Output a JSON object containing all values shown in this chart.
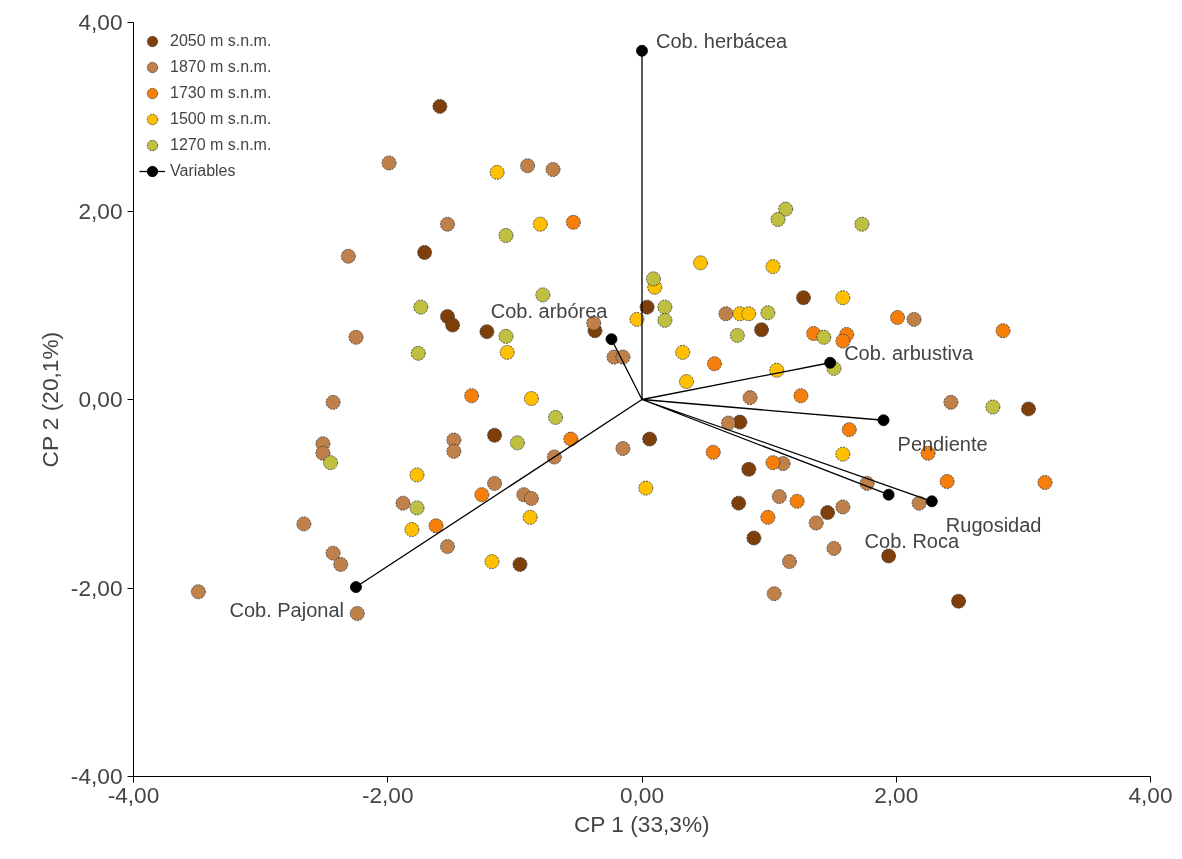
{
  "chart_data": {
    "type": "scatter",
    "xlabel": "CP 1 (33,3%)",
    "ylabel": "CP 2 (20,1%)",
    "xlim": [
      -4,
      4
    ],
    "ylim": [
      -4,
      4
    ],
    "xticks": [
      {
        "value": -4,
        "label": "-4,00"
      },
      {
        "value": -2,
        "label": "-2,00"
      },
      {
        "value": 0,
        "label": "0,00"
      },
      {
        "value": 2,
        "label": "2,00"
      },
      {
        "value": 4,
        "label": "4,00"
      }
    ],
    "yticks": [
      {
        "value": -4,
        "label": "-4,00"
      },
      {
        "value": -2,
        "label": "-2,00"
      },
      {
        "value": 0,
        "label": "0,00"
      },
      {
        "value": 2,
        "label": "2,00"
      },
      {
        "value": 4,
        "label": "4,00"
      }
    ],
    "grid": false,
    "legend": "top left",
    "marker": "circle",
    "series": [
      {
        "name": "2050 m s.n.m.",
        "color": "#7f3f0a",
        "x": [
          -1.59,
          -1.71,
          -1.53,
          -1.49,
          -1.22,
          -0.37,
          0.04,
          1.27,
          0.94,
          3.04,
          -1.16,
          0.06,
          -0.96,
          0.77,
          0.84,
          0.76,
          1.46,
          0.88,
          1.94,
          2.49
        ],
        "values": [
          3.11,
          1.56,
          0.88,
          0.79,
          0.72,
          0.73,
          0.98,
          1.08,
          0.74,
          -0.1,
          -0.38,
          -0.42,
          -1.75,
          -0.24,
          -0.74,
          -1.1,
          -1.2,
          -1.47,
          -1.66,
          -2.14
        ]
      },
      {
        "name": "1870 m s.n.m.",
        "color": "#c0804a",
        "x": [
          -1.99,
          -0.9,
          -0.7,
          -1.53,
          -2.31,
          -2.25,
          -0.38,
          -0.22,
          -0.15,
          -2.43,
          0.66,
          2.14,
          0.85,
          2.43,
          -0.15,
          -2.51,
          -2.51,
          -1.48,
          -1.48,
          -0.69,
          -1.16,
          -0.93,
          -0.87,
          -1.88,
          -2.66,
          -1.53,
          -2.43,
          -2.37,
          -3.49,
          -2.24,
          0.68,
          1.11,
          1.77,
          2.18,
          1.08,
          1.58,
          1.37,
          1.51,
          1.16,
          1.04
        ],
        "values": [
          2.51,
          2.48,
          2.44,
          1.86,
          1.52,
          0.66,
          0.81,
          0.45,
          0.45,
          -0.03,
          0.91,
          0.85,
          0.02,
          -0.03,
          -0.52,
          -0.47,
          -0.57,
          -0.43,
          -0.55,
          -0.61,
          -0.89,
          -1.01,
          -1.05,
          -1.1,
          -1.32,
          -1.56,
          -1.63,
          -1.75,
          -2.04,
          -2.27,
          -0.25,
          -0.68,
          -0.89,
          -1.1,
          -1.03,
          -1.14,
          -1.31,
          -1.58,
          -1.72,
          -2.06
        ]
      },
      {
        "name": "1730 m s.n.m.",
        "color": "#f57f0a",
        "x": [
          -0.54,
          -1.34,
          1.35,
          1.61,
          1.58,
          2.01,
          2.84,
          0.57,
          1.25,
          -0.56,
          -1.26,
          -1.62,
          1.63,
          0.56,
          2.25,
          1.03,
          2.4,
          3.17,
          1.22,
          0.99
        ],
        "values": [
          1.88,
          0.04,
          0.7,
          0.69,
          0.62,
          0.87,
          0.73,
          0.38,
          0.04,
          -0.42,
          -1.01,
          -1.34,
          -0.32,
          -0.56,
          -0.57,
          -0.67,
          -0.87,
          -0.88,
          -1.08,
          -1.25
        ]
      },
      {
        "name": "1500 m s.n.m.",
        "color": "#ffc000",
        "x": [
          -1.14,
          -0.8,
          -1.06,
          -0.04,
          0.1,
          -0.87,
          0.46,
          1.03,
          1.58,
          0.77,
          0.84,
          0.32,
          0.35,
          1.06,
          -1.77,
          -0.88,
          -1.81,
          -1.18,
          0.03,
          1.58
        ],
        "values": [
          2.41,
          1.86,
          0.5,
          0.85,
          1.19,
          0.01,
          1.45,
          1.41,
          1.08,
          0.91,
          0.91,
          0.5,
          0.19,
          0.31,
          -0.8,
          -1.25,
          -1.38,
          -1.72,
          -0.94,
          -0.58
        ]
      },
      {
        "name": "1270 m s.n.m.",
        "color": "#bfbf40",
        "x": [
          -1.07,
          -0.78,
          -1.74,
          -1.07,
          -1.76,
          0.09,
          1.13,
          1.07,
          1.73,
          0.18,
          0.18,
          0.99,
          0.75,
          1.43,
          1.51,
          2.76,
          -0.68,
          -0.98,
          -2.45,
          -1.77
        ],
        "values": [
          1.74,
          1.11,
          0.98,
          0.67,
          0.49,
          1.28,
          2.02,
          1.91,
          1.86,
          0.98,
          0.84,
          0.92,
          0.68,
          0.66,
          0.33,
          -0.08,
          -0.19,
          -0.46,
          -0.67,
          -1.15
        ]
      },
      {
        "name": "Variables",
        "type": "scatter",
        "color": "#000000",
        "x": [
          0.0,
          -0.24,
          1.48,
          1.9,
          1.94,
          2.28,
          -2.25
        ],
        "values": [
          3.7,
          0.64,
          0.39,
          -0.22,
          -1.01,
          -1.08,
          -1.99
        ]
      },
      {
        "type": "line",
        "marker": "none",
        "color": "#000000",
        "x": [
          0,
          0.0,
          0,
          -0.24,
          0,
          1.48,
          0,
          1.9,
          0,
          1.94,
          0,
          2.28,
          0,
          -2.25
        ],
        "values": [
          0,
          3.7,
          0,
          0.64,
          0,
          0.39,
          0,
          -0.22,
          0,
          -1.01,
          0,
          -1.08,
          0,
          -1.99
        ]
      }
    ],
    "annotations": [
      {
        "text": "Cob. herbácea",
        "x": 0.0,
        "y": 3.7
      },
      {
        "text": "Cob. arbórea",
        "x": -0.24,
        "y": 0.64
      },
      {
        "text": "Cob. arbustiva",
        "x": 1.48,
        "y": 0.39
      },
      {
        "text": "Pendiente",
        "x": 1.9,
        "y": -0.22
      },
      {
        "text": "Cob. Roca",
        "x": 1.94,
        "y": -1.01
      },
      {
        "text": "Rugosidad",
        "x": 2.28,
        "y": -1.08
      },
      {
        "text": "Cob. Pajonal",
        "x": -2.25,
        "y": -1.99
      }
    ]
  }
}
